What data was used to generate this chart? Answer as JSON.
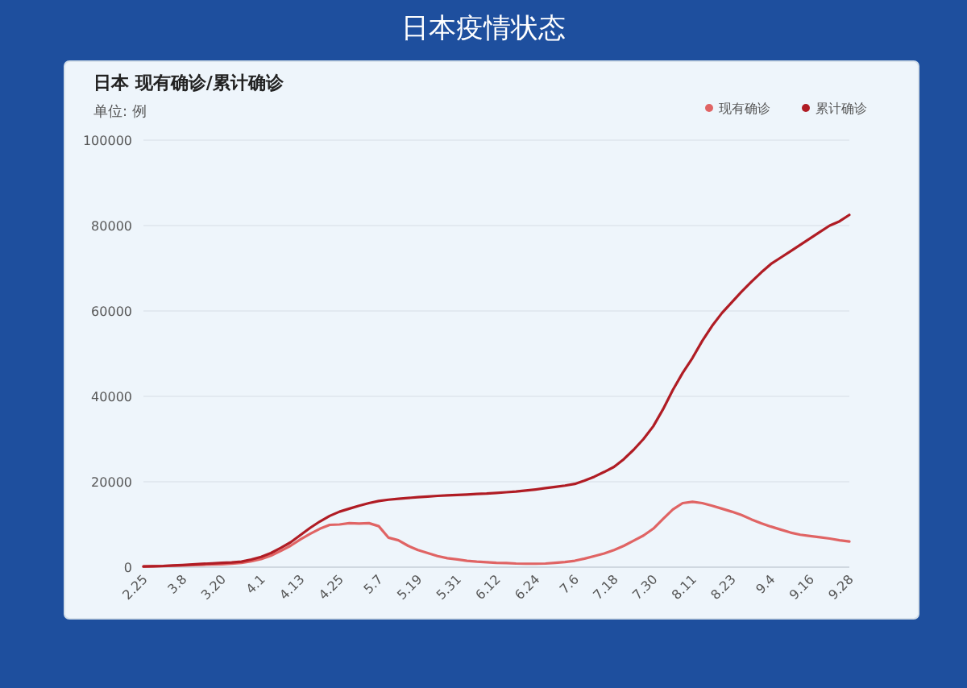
{
  "chart_data": {
    "type": "line",
    "title": "日本疫情状态",
    "subtitle": "日本 现有确诊/累计确诊",
    "ylabel": "单位: 例",
    "categories": [
      "2.25",
      null,
      null,
      null,
      "3.8",
      null,
      null,
      null,
      "3.20",
      null,
      null,
      null,
      "4.1",
      null,
      null,
      null,
      "4.13",
      null,
      null,
      null,
      "4.25",
      null,
      null,
      null,
      "5.7",
      null,
      null,
      null,
      "5.19",
      null,
      null,
      null,
      "5.31",
      null,
      null,
      null,
      "6.12",
      null,
      null,
      null,
      "6.24",
      null,
      null,
      null,
      "7.6",
      null,
      null,
      null,
      "7.18",
      null,
      null,
      null,
      "7.30",
      null,
      null,
      null,
      "8.11",
      null,
      null,
      null,
      "8.23",
      null,
      null,
      null,
      "9.4",
      null,
      null,
      null,
      "9.16",
      null,
      null,
      null,
      "9.28"
    ],
    "series": [
      {
        "name": "现有确诊",
        "color": "#e06464",
        "values": [
          150,
          200,
          250,
          330,
          400,
          480,
          560,
          630,
          700,
          800,
          1000,
          1400,
          1900,
          2700,
          3800,
          5000,
          6500,
          7800,
          9000,
          9900,
          10000,
          10300,
          10200,
          10300,
          9600,
          6900,
          6300,
          5000,
          4000,
          3300,
          2600,
          2100,
          1800,
          1500,
          1300,
          1150,
          1000,
          950,
          850,
          800,
          800,
          850,
          1000,
          1200,
          1500,
          2000,
          2600,
          3200,
          4000,
          5000,
          6200,
          7400,
          9000,
          11300,
          13500,
          15000,
          15300,
          15000,
          14400,
          13700,
          13000,
          12200,
          11200,
          10300,
          9500,
          8800,
          8100,
          7600,
          7300,
          7000,
          6700,
          6300,
          6000
        ]
      },
      {
        "name": "累计确诊",
        "color": "#b01c24",
        "values": [
          160,
          230,
          280,
          400,
          500,
          620,
          780,
          880,
          1000,
          1100,
          1300,
          1800,
          2400,
          3300,
          4500,
          5800,
          7500,
          9200,
          10700,
          12000,
          13000,
          13700,
          14400,
          15000,
          15500,
          15800,
          16000,
          16200,
          16400,
          16550,
          16700,
          16800,
          16900,
          17000,
          17150,
          17250,
          17400,
          17550,
          17700,
          17950,
          18200,
          18500,
          18800,
          19100,
          19500,
          20300,
          21200,
          22300,
          23500,
          25300,
          27500,
          30000,
          33000,
          37000,
          41500,
          45500,
          49000,
          53000,
          56500,
          59500,
          62000,
          64500,
          66800,
          69000,
          71000,
          72500,
          74000,
          75500,
          77000,
          78500,
          80000,
          81000,
          82500
        ]
      }
    ],
    "ylim": [
      0,
      100000
    ],
    "yticks": [
      0,
      20000,
      40000,
      60000,
      80000,
      100000
    ],
    "grid": "y",
    "legend": "top right"
  }
}
